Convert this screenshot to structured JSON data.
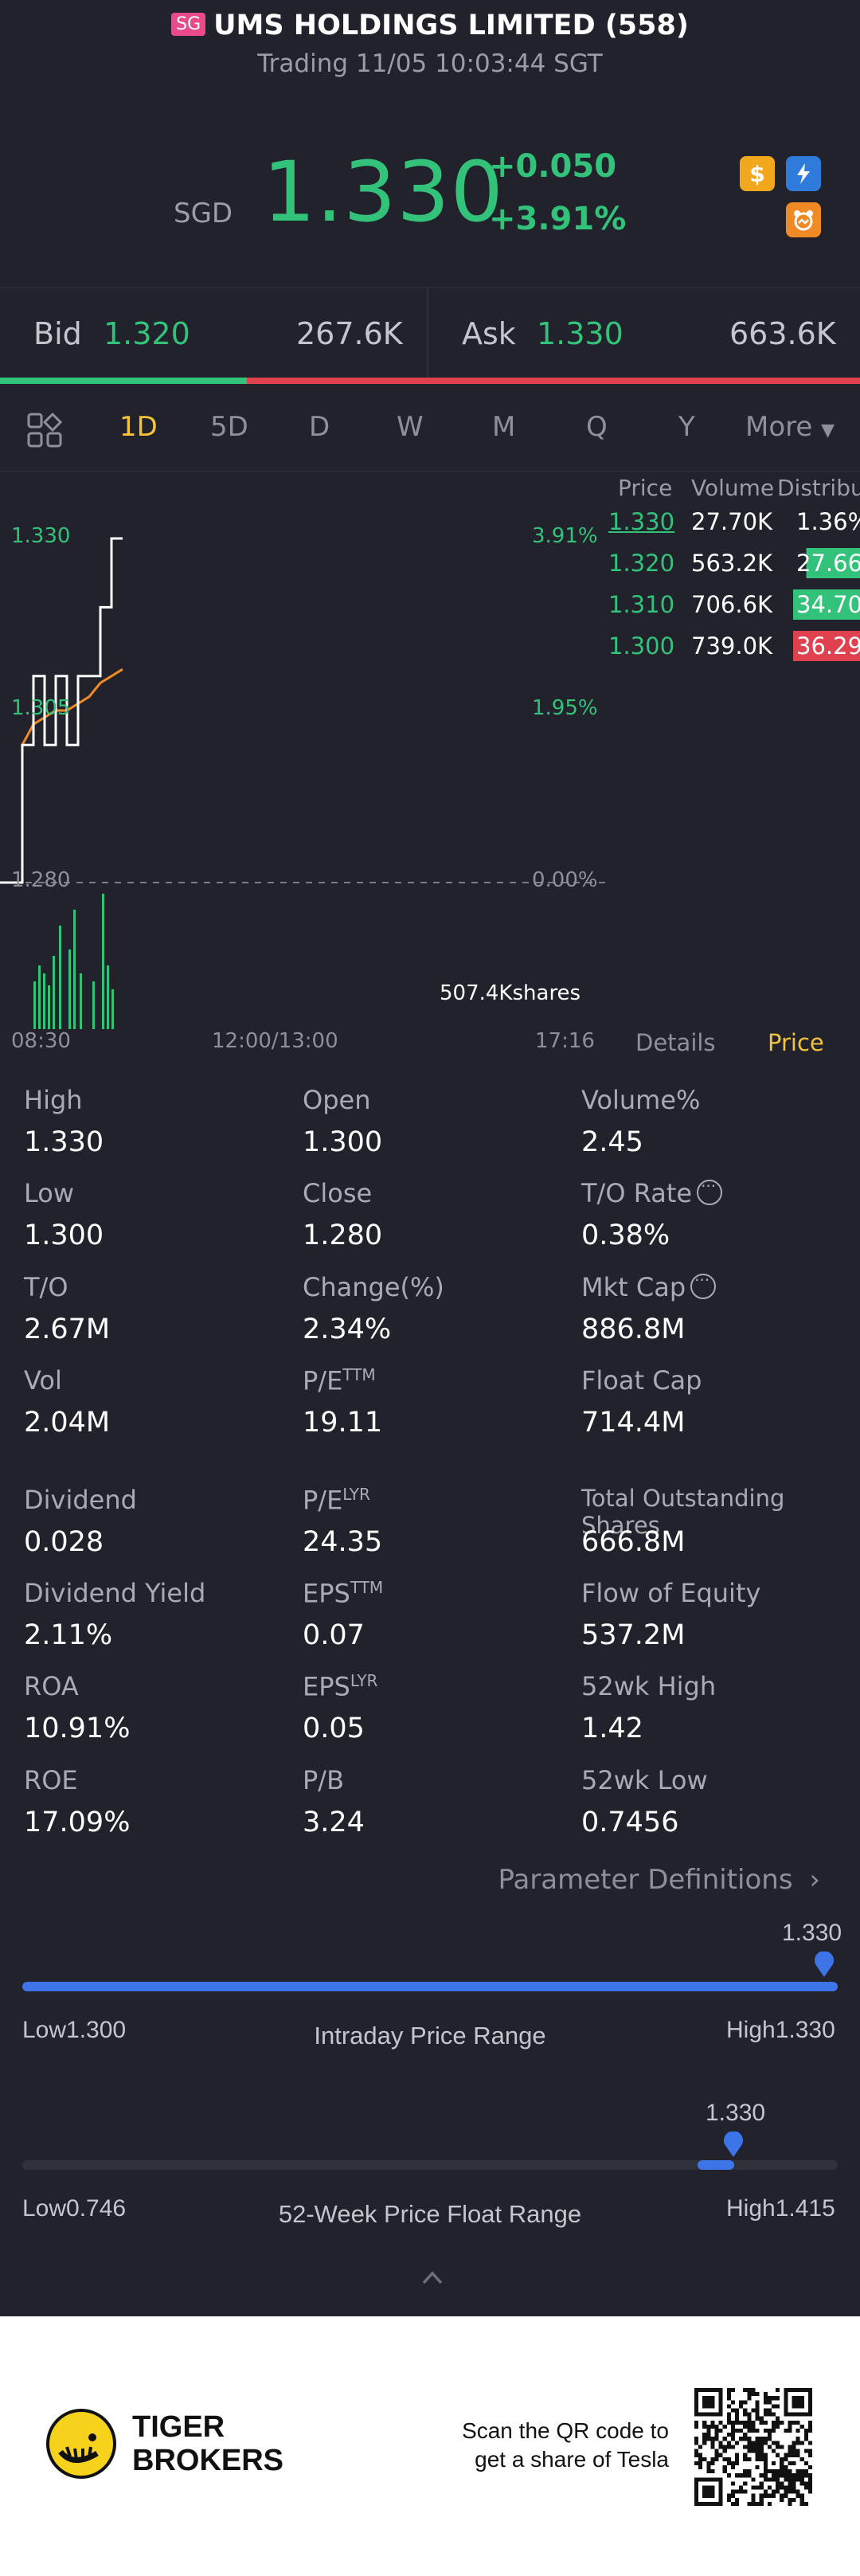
{
  "header": {
    "market_badge": "SG",
    "title": "UMS HOLDINGS LIMITED (558)",
    "status": "Trading 11/05 10:03:44 SGT",
    "currency": "SGD",
    "price": "1.330",
    "change": "+0.050",
    "change_pct": "+3.91%",
    "icons": [
      "dollar-icon",
      "flash-icon",
      "bear-icon"
    ],
    "colors": {
      "up": "#33c27a",
      "down": "#e0414f",
      "accent": "#f5c33b"
    }
  },
  "bidask": {
    "bid_label": "Bid",
    "bid_price": "1.320",
    "bid_volume": "267.6K",
    "ask_label": "Ask",
    "ask_price": "1.330",
    "ask_volume": "663.6K",
    "bid_ratio": 0.287
  },
  "tabs": [
    "1D",
    "5D",
    "D",
    "W",
    "M",
    "Q",
    "Y",
    "More"
  ],
  "active_tab": "1D",
  "chart": {
    "y_left": [
      "1.330",
      "1.305",
      "1.280"
    ],
    "y_right": [
      "3.91%",
      "1.95%",
      "0.00%"
    ],
    "volume_label": "507.4Kshares",
    "x_labels": [
      "08:30",
      "12:00/13:00",
      "17:16"
    ],
    "toggle": {
      "details": "Details",
      "price": "Price"
    }
  },
  "chart_data": {
    "type": "line",
    "x": [
      "08:30",
      "08:45",
      "08:50",
      "08:52",
      "08:54",
      "08:56",
      "08:58",
      "09:00",
      "09:05",
      "09:10",
      "09:15",
      "09:20"
    ],
    "series": [
      {
        "values": [
          1.28,
          1.28,
          1.3,
          1.31,
          1.3,
          1.31,
          1.3,
          1.31,
          1.31,
          1.32,
          1.33,
          1.33
        ]
      },
      {
        "values": [
          null,
          null,
          1.3,
          1.303,
          1.304,
          1.305,
          1.305,
          1.306,
          1.307,
          1.309,
          1.31,
          1.311
        ]
      }
    ],
    "xlabel": "",
    "ylabel": "",
    "ylim": [
      1.28,
      1.33
    ],
    "reference_value": 1.28,
    "volume_label": "507.4Kshares"
  },
  "distribution": {
    "headers": [
      "Price",
      "Volume",
      "Distribu"
    ],
    "rows": [
      {
        "price": "1.330",
        "volume": "27.70K",
        "pct": "1.36%",
        "color": "#33c27a",
        "fill": 0.0136
      },
      {
        "price": "1.320",
        "volume": "563.2K",
        "pct": "27.66%",
        "color": "#33c27a",
        "fill": 0.2766
      },
      {
        "price": "1.310",
        "volume": "706.6K",
        "pct": "34.70%",
        "color": "#33c27a",
        "fill": 0.347
      },
      {
        "price": "1.300",
        "volume": "739.0K",
        "pct": "36.29%",
        "color": "#e0414f",
        "fill": 0.3629
      }
    ]
  },
  "stats": [
    {
      "label": "High",
      "value": "1.330"
    },
    {
      "label": "Open",
      "value": "1.300"
    },
    {
      "label": "Volume%",
      "value": "2.45"
    },
    {
      "label": "Low",
      "value": "1.300"
    },
    {
      "label": "Close",
      "value": "1.280"
    },
    {
      "label": "T/O Rate",
      "value": "0.38%"
    },
    {
      "label": "T/O",
      "value": "2.67M"
    },
    {
      "label": "Change(%)",
      "value": "2.34%"
    },
    {
      "label": "Mkt Cap",
      "value": "886.8M"
    },
    {
      "label": "Vol",
      "value": "2.04M"
    },
    {
      "label": "P/E",
      "sup": "TTM",
      "value": "19.11"
    },
    {
      "label": "Float Cap",
      "value": "714.4M"
    },
    {
      "label": "Dividend",
      "value": "0.028"
    },
    {
      "label": "P/E",
      "sup": "LYR",
      "value": "24.35"
    },
    {
      "label": "Total Outstanding Shares",
      "value": "666.8M"
    },
    {
      "label": "Dividend Yield",
      "value": "2.11%"
    },
    {
      "label": "EPS",
      "sup": "TTM",
      "value": "0.07"
    },
    {
      "label": "Flow of Equity",
      "value": "537.2M"
    },
    {
      "label": "ROA",
      "value": "10.91%"
    },
    {
      "label": "EPS",
      "sup": "LYR",
      "value": "0.05"
    },
    {
      "label": "52wk High",
      "value": "1.42"
    },
    {
      "label": "ROE",
      "value": "17.09%"
    },
    {
      "label": "P/B",
      "value": "3.24"
    },
    {
      "label": "52wk Low",
      "value": "0.7456"
    }
  ],
  "param_definitions": "Parameter Definitions",
  "intraday_range": {
    "marker_value": "1.330",
    "low": "Low1.300",
    "title": "Intraday Price Range",
    "high": "High1.330",
    "position": 1.0
  },
  "week52_range": {
    "marker_value": "1.330",
    "low": "Low0.746",
    "title": "52-Week Price Float Range",
    "high": "High1.415",
    "position": 0.873
  },
  "footer": {
    "brand_line1": "TIGER",
    "brand_line2": "BROKERS",
    "scan_line1": "Scan the QR code to",
    "scan_line2": "get a share of Tesla"
  }
}
